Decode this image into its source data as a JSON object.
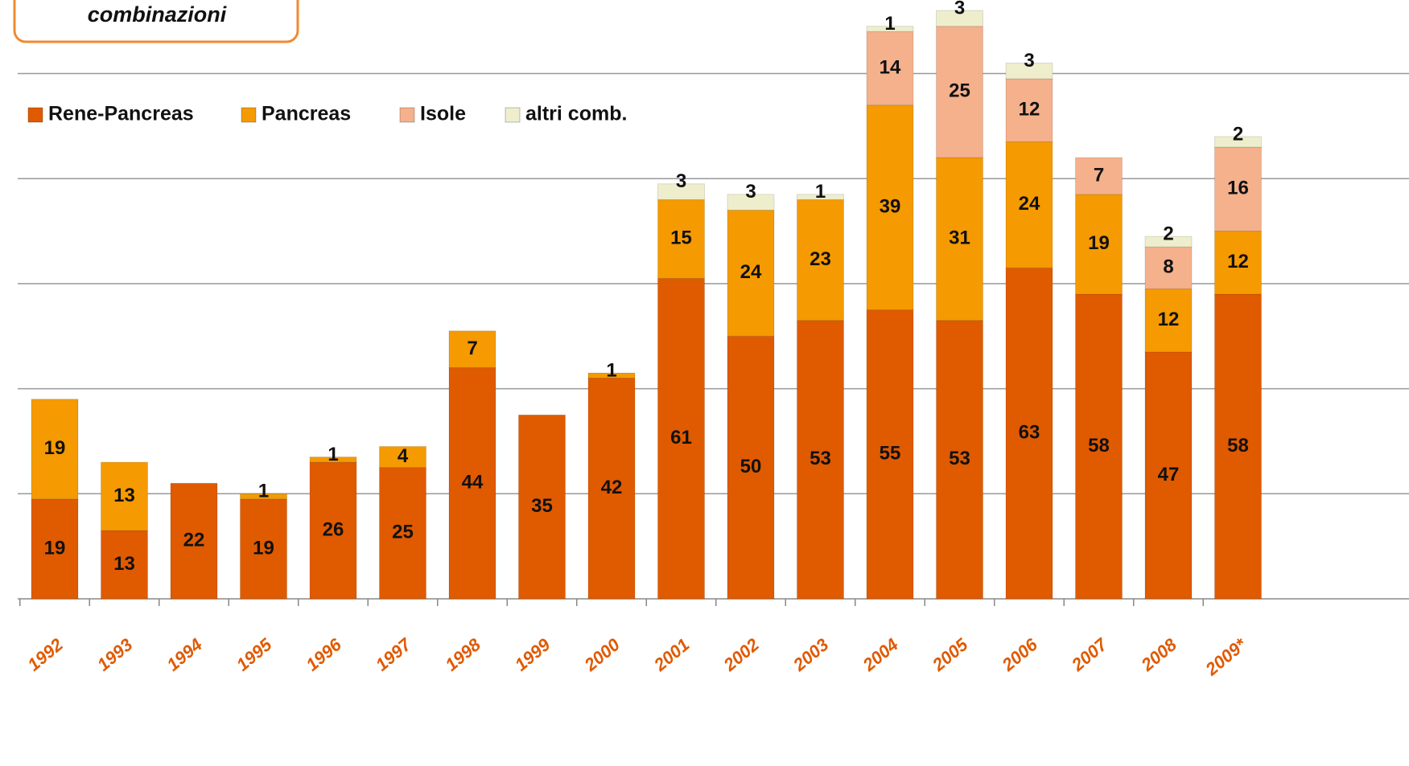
{
  "chart_data": {
    "type": "bar",
    "stacked": true,
    "title": "combinazioni",
    "categories": [
      "1992",
      "1993",
      "1994",
      "1995",
      "1996",
      "1997",
      "1998",
      "1999",
      "2000",
      "2001",
      "2002",
      "2003",
      "2004",
      "2005",
      "2006",
      "2007",
      "2008",
      "2009*"
    ],
    "series": [
      {
        "name": "Rene-Pancreas",
        "color": "#e05a00",
        "values": [
          19,
          13,
          22,
          19,
          26,
          25,
          44,
          35,
          42,
          61,
          50,
          53,
          55,
          53,
          63,
          58,
          47,
          58
        ]
      },
      {
        "name": "Pancreas",
        "color": "#f59a00",
        "values": [
          19,
          13,
          null,
          1,
          1,
          4,
          7,
          null,
          1,
          15,
          24,
          23,
          39,
          31,
          24,
          19,
          12,
          12
        ]
      },
      {
        "name": "Isole",
        "color": "#f5b08c",
        "values": [
          null,
          null,
          null,
          null,
          null,
          null,
          null,
          null,
          null,
          null,
          null,
          null,
          14,
          25,
          12,
          7,
          8,
          16
        ]
      },
      {
        "name": "altri comb.",
        "color": "#eeeecc",
        "values": [
          null,
          null,
          null,
          null,
          null,
          null,
          null,
          null,
          null,
          3,
          3,
          1,
          1,
          3,
          3,
          null,
          2,
          2
        ]
      }
    ],
    "ylim": [
      0,
      114
    ],
    "yticks": [
      0,
      20,
      40,
      60,
      80,
      100
    ],
    "grid": true,
    "legend": "top-left"
  }
}
